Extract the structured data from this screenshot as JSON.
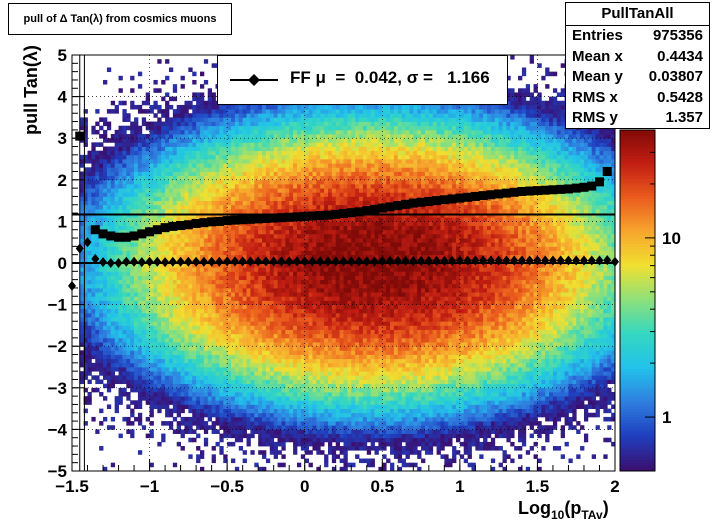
{
  "title_box": {
    "text": "pull of Δ Tan(λ) from cosmics muons"
  },
  "stats": {
    "name": "PullTanAll",
    "rows": [
      {
        "label": "Entries",
        "value": "975356"
      },
      {
        "label": "Mean x",
        "value": "0.4434"
      },
      {
        "label": "Mean y",
        "value": "0.03807"
      },
      {
        "label": "RMS x",
        "value": "0.5428"
      },
      {
        "label": "RMS y",
        "value": "1.357"
      }
    ]
  },
  "legend": {
    "text": "FF μ  =  0.042, σ =   1.166"
  },
  "colors": {
    "frame": "#000000",
    "grid": "#000000",
    "markers": "#000000",
    "palette": [
      "#3b0f70",
      "#1f3fbf",
      "#2f7fe0",
      "#22c2ea",
      "#34d7c0",
      "#8ee07a",
      "#f0e030",
      "#f7a52d",
      "#ea5b1d",
      "#c21e12",
      "#7f0a08"
    ]
  },
  "chart_data": {
    "type": "heatmap",
    "xlabel": "Log10(pTAv)",
    "xlabel_parts": {
      "base": "Log",
      "sub1": "10",
      "mid": "(p",
      "sub2": "TAv",
      "end": ")"
    },
    "ylabel": "pull Tan(λ)",
    "xlim": [
      -1.5,
      2
    ],
    "ylim": [
      -5,
      5
    ],
    "xticks": [
      "−1.5",
      "−1",
      "−0.5",
      "0",
      "0.5",
      "1",
      "1.5",
      "2"
    ],
    "xtick_values": [
      -1.5,
      -1,
      -0.5,
      0,
      0.5,
      1,
      1.5,
      2
    ],
    "yticks": [
      "−5",
      "−4",
      "−3",
      "−2",
      "−1",
      "0",
      "1",
      "2",
      "3",
      "4",
      "5"
    ],
    "ytick_values": [
      -5,
      -4,
      -3,
      -2,
      -1,
      0,
      1,
      2,
      3,
      4,
      5
    ],
    "grid": true,
    "colorbar": {
      "scale": "log",
      "ticks": [
        "1",
        "10"
      ],
      "tick_values": [
        1,
        10
      ],
      "zlim": [
        0.5,
        40
      ]
    },
    "heatmap_model": {
      "x_center": 0.44,
      "x_rms": 0.54,
      "y_center": 0.04,
      "y_rms": 1.36,
      "peak": 40,
      "x_min_populated": -1.45
    },
    "reference_lines": [
      {
        "name": "sigma=1.166",
        "y": 1.166
      },
      {
        "name": "mean=0",
        "y": 0
      }
    ],
    "series": [
      {
        "name": "sigma",
        "marker": "square",
        "x": [
          -1.45,
          -1.35,
          -1.3,
          -1.25,
          -1.2,
          -1.15,
          -1.1,
          -1.05,
          -1.0,
          -0.95,
          -0.9,
          -0.85,
          -0.8,
          -0.75,
          -0.7,
          -0.65,
          -0.6,
          -0.55,
          -0.5,
          -0.45,
          -0.4,
          -0.35,
          -0.3,
          -0.25,
          -0.2,
          -0.15,
          -0.1,
          -0.05,
          0.0,
          0.05,
          0.1,
          0.15,
          0.2,
          0.25,
          0.3,
          0.35,
          0.4,
          0.45,
          0.5,
          0.55,
          0.6,
          0.65,
          0.7,
          0.75,
          0.8,
          0.85,
          0.9,
          0.95,
          1.0,
          1.05,
          1.1,
          1.15,
          1.2,
          1.25,
          1.3,
          1.35,
          1.4,
          1.45,
          1.5,
          1.55,
          1.6,
          1.65,
          1.7,
          1.75,
          1.8,
          1.85,
          1.9,
          1.95
        ],
        "values": [
          3.05,
          0.8,
          0.7,
          0.65,
          0.62,
          0.62,
          0.65,
          0.7,
          0.75,
          0.8,
          0.85,
          0.88,
          0.9,
          0.92,
          0.95,
          0.97,
          0.99,
          1.0,
          1.02,
          1.03,
          1.04,
          1.05,
          1.06,
          1.07,
          1.08,
          1.09,
          1.1,
          1.11,
          1.12,
          1.13,
          1.14,
          1.15,
          1.17,
          1.19,
          1.21,
          1.23,
          1.26,
          1.29,
          1.32,
          1.35,
          1.38,
          1.41,
          1.44,
          1.46,
          1.48,
          1.5,
          1.52,
          1.54,
          1.56,
          1.58,
          1.6,
          1.62,
          1.64,
          1.66,
          1.68,
          1.7,
          1.72,
          1.73,
          1.74,
          1.75,
          1.76,
          1.77,
          1.78,
          1.8,
          1.82,
          1.85,
          1.95,
          2.2
        ]
      },
      {
        "name": "mean",
        "marker": "diamond",
        "x": [
          -1.5,
          -1.45,
          -1.4,
          -1.35,
          -1.3,
          -1.25,
          -1.2,
          -1.15,
          -1.1,
          -1.05,
          -1.0,
          -0.95,
          -0.9,
          -0.85,
          -0.8,
          -0.75,
          -0.7,
          -0.65,
          -0.6,
          -0.55,
          -0.5,
          -0.45,
          -0.4,
          -0.35,
          -0.3,
          -0.25,
          -0.2,
          -0.15,
          -0.1,
          -0.05,
          0.0,
          0.05,
          0.1,
          0.15,
          0.2,
          0.25,
          0.3,
          0.35,
          0.4,
          0.45,
          0.5,
          0.55,
          0.6,
          0.65,
          0.7,
          0.75,
          0.8,
          0.85,
          0.9,
          0.95,
          1.0,
          1.05,
          1.1,
          1.15,
          1.2,
          1.25,
          1.3,
          1.35,
          1.4,
          1.45,
          1.5,
          1.55,
          1.6,
          1.65,
          1.7,
          1.75,
          1.8,
          1.85,
          1.9,
          1.95,
          2.0
        ],
        "values": [
          -0.55,
          0.35,
          0.5,
          0.1,
          0.02,
          0.0,
          0.0,
          0.03,
          0.03,
          0.02,
          0.03,
          0.03,
          0.02,
          0.03,
          0.03,
          0.03,
          0.03,
          0.03,
          0.03,
          0.03,
          0.04,
          0.04,
          0.04,
          0.04,
          0.04,
          0.04,
          0.04,
          0.04,
          0.04,
          0.04,
          0.04,
          0.04,
          0.04,
          0.04,
          0.04,
          0.04,
          0.04,
          0.04,
          0.04,
          0.04,
          0.05,
          0.05,
          0.05,
          0.05,
          0.05,
          0.05,
          0.05,
          0.05,
          0.05,
          0.05,
          0.06,
          0.06,
          0.06,
          0.06,
          0.06,
          0.06,
          0.06,
          0.06,
          0.06,
          0.06,
          0.06,
          0.06,
          0.06,
          0.06,
          0.06,
          0.06,
          0.06,
          0.06,
          0.06,
          0.07,
          0.03
        ]
      }
    ]
  }
}
